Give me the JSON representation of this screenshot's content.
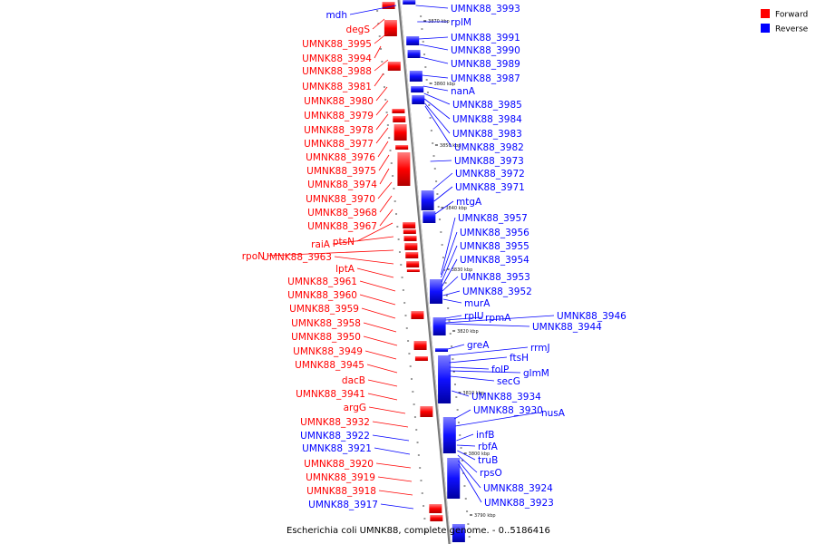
{
  "legend": [
    {
      "label": "Forward",
      "color": "#ff0000"
    },
    {
      "label": "Reverse",
      "color": "#0000ff"
    }
  ],
  "caption": "Escherichia coli UMNK88, complete genome. - 0..5186416",
  "scale_ticks": [
    "3870 kbp",
    "3860 kbp",
    "3850 kbp",
    "3840 kbp",
    "3830 kbp",
    "3820 kbp",
    "3810 kbp",
    "3800 kbp",
    "3790 kbp"
  ],
  "left_labels": [
    {
      "text": "mdh",
      "strand": "reverse"
    },
    {
      "text": "degS",
      "strand": "forward"
    },
    {
      "text": "UMNK88_3995",
      "strand": "forward"
    },
    {
      "text": "UMNK88_3994",
      "strand": "forward"
    },
    {
      "text": "UMNK88_3988",
      "strand": "forward"
    },
    {
      "text": "UMNK88_3981",
      "strand": "forward"
    },
    {
      "text": "UMNK88_3980",
      "strand": "forward"
    },
    {
      "text": "UMNK88_3979",
      "strand": "forward"
    },
    {
      "text": "UMNK88_3978",
      "strand": "forward"
    },
    {
      "text": "UMNK88_3977",
      "strand": "forward"
    },
    {
      "text": "UMNK88_3976",
      "strand": "forward"
    },
    {
      "text": "UMNK88_3975",
      "strand": "forward"
    },
    {
      "text": "UMNK88_3974",
      "strand": "forward"
    },
    {
      "text": "UMNK88_3970",
      "strand": "forward"
    },
    {
      "text": "UMNK88_3968",
      "strand": "forward"
    },
    {
      "text": "UMNK88_3967",
      "strand": "forward"
    },
    {
      "text": "ptsN",
      "strand": "forward"
    },
    {
      "text": "raiA",
      "strand": "forward"
    },
    {
      "text": "rpoN",
      "strand": "forward"
    },
    {
      "text": "UMNK88_3963",
      "strand": "forward"
    },
    {
      "text": "lptA",
      "strand": "forward"
    },
    {
      "text": "UMNK88_3961",
      "strand": "forward"
    },
    {
      "text": "UMNK88_3960",
      "strand": "forward"
    },
    {
      "text": "UMNK88_3959",
      "strand": "forward"
    },
    {
      "text": "UMNK88_3958",
      "strand": "forward"
    },
    {
      "text": "UMNK88_3950",
      "strand": "forward"
    },
    {
      "text": "UMNK88_3949",
      "strand": "forward"
    },
    {
      "text": "UMNK88_3945",
      "strand": "forward"
    },
    {
      "text": "dacB",
      "strand": "forward"
    },
    {
      "text": "UMNK88_3941",
      "strand": "forward"
    },
    {
      "text": "argG",
      "strand": "forward"
    },
    {
      "text": "UMNK88_3932",
      "strand": "forward"
    },
    {
      "text": "UMNK88_3922",
      "strand": "reverse"
    },
    {
      "text": "UMNK88_3921",
      "strand": "reverse"
    },
    {
      "text": "UMNK88_3920",
      "strand": "forward"
    },
    {
      "text": "UMNK88_3919",
      "strand": "forward"
    },
    {
      "text": "UMNK88_3918",
      "strand": "forward"
    },
    {
      "text": "UMNK88_3917",
      "strand": "reverse"
    }
  ],
  "right_labels": [
    {
      "text": "UMNK88_3993",
      "strand": "reverse"
    },
    {
      "text": "rplM",
      "strand": "reverse"
    },
    {
      "text": "UMNK88_3991",
      "strand": "reverse"
    },
    {
      "text": "UMNK88_3990",
      "strand": "reverse"
    },
    {
      "text": "UMNK88_3989",
      "strand": "reverse"
    },
    {
      "text": "UMNK88_3987",
      "strand": "reverse"
    },
    {
      "text": "nanA",
      "strand": "reverse"
    },
    {
      "text": "UMNK88_3985",
      "strand": "reverse"
    },
    {
      "text": "UMNK88_3984",
      "strand": "reverse"
    },
    {
      "text": "UMNK88_3983",
      "strand": "reverse"
    },
    {
      "text": "UMNK88_3982",
      "strand": "reverse"
    },
    {
      "text": "UMNK88_3973",
      "strand": "reverse"
    },
    {
      "text": "UMNK88_3972",
      "strand": "reverse"
    },
    {
      "text": "UMNK88_3971",
      "strand": "reverse"
    },
    {
      "text": "mtgA",
      "strand": "reverse"
    },
    {
      "text": "UMNK88_3957",
      "strand": "reverse"
    },
    {
      "text": "UMNK88_3956",
      "strand": "reverse"
    },
    {
      "text": "UMNK88_3955",
      "strand": "reverse"
    },
    {
      "text": "UMNK88_3954",
      "strand": "reverse"
    },
    {
      "text": "UMNK88_3953",
      "strand": "reverse"
    },
    {
      "text": "UMNK88_3952",
      "strand": "reverse"
    },
    {
      "text": "murA",
      "strand": "reverse"
    },
    {
      "text": "rplU",
      "strand": "reverse"
    },
    {
      "text": "rpmA",
      "strand": "reverse"
    },
    {
      "text": "UMNK88_3946",
      "strand": "reverse"
    },
    {
      "text": "UMNK88_3944",
      "strand": "reverse"
    },
    {
      "text": "greA",
      "strand": "reverse"
    },
    {
      "text": "rrmJ",
      "strand": "reverse"
    },
    {
      "text": "ftsH",
      "strand": "reverse"
    },
    {
      "text": "folP",
      "strand": "reverse"
    },
    {
      "text": "glmM",
      "strand": "reverse"
    },
    {
      "text": "secG",
      "strand": "reverse"
    },
    {
      "text": "UMNK88_3934",
      "strand": "reverse"
    },
    {
      "text": "UMNK88_3930",
      "strand": "reverse"
    },
    {
      "text": "nusA",
      "strand": "reverse"
    },
    {
      "text": "infB",
      "strand": "reverse"
    },
    {
      "text": "rbfA",
      "strand": "reverse"
    },
    {
      "text": "truB",
      "strand": "reverse"
    },
    {
      "text": "rpsO",
      "strand": "reverse"
    },
    {
      "text": "UMNK88_3924",
      "strand": "reverse"
    },
    {
      "text": "UMNK88_3923",
      "strand": "reverse"
    }
  ]
}
